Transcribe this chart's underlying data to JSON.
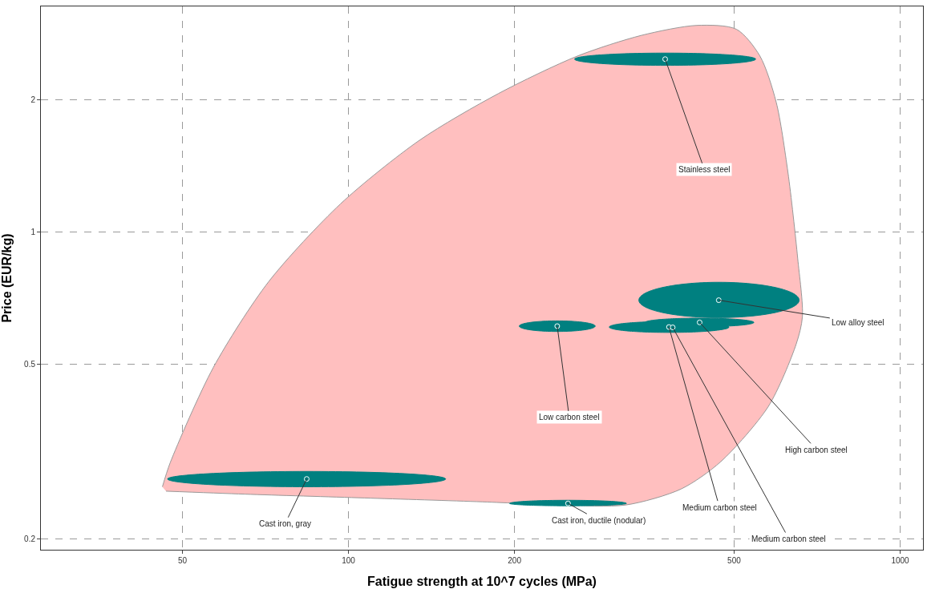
{
  "chart_data": {
    "type": "scatter",
    "xlabel": "Fatigue strength at 10^7 cycles (MPa)",
    "ylabel": "Price (EUR/kg)",
    "log": "xy",
    "grid": true,
    "series": [
      {
        "type": "area",
        "color": "#ffbfbf",
        "x": [
          46.0,
          47.5,
          56.9,
          71.7,
          96.7,
          134.5,
          187,
          260,
          340,
          428,
          505,
          557,
          596,
          626,
          652,
          665,
          648,
          577,
          473,
          401,
          318,
          244,
          175,
          107,
          64.9,
          46.7
        ],
        "values": [
          0.263,
          0.298,
          0.492,
          0.772,
          1.16,
          1.62,
          2.07,
          2.52,
          2.81,
          2.96,
          2.9,
          2.52,
          1.98,
          1.37,
          0.873,
          0.642,
          0.556,
          0.401,
          0.3,
          0.26,
          0.239,
          0.239,
          0.243,
          0.248,
          0.253,
          0.257
        ]
      },
      {
        "color": "#008080",
        "x": [
          375,
          469,
          433,
          381,
          387,
          239,
          84,
          250
        ],
        "values": [
          2.48,
          0.7,
          0.623,
          0.608,
          0.607,
          0.611,
          0.274,
          0.241
        ],
        "xerrors": [
          [
            257,
            547
          ],
          [
            336,
            656
          ],
          [
            345,
            543
          ],
          [
            297,
            489
          ],
          [
            307,
            489
          ],
          [
            204,
            280
          ],
          [
            47,
            150
          ],
          [
            196,
            319
          ]
        ],
        "errors": [
          [
            2.4,
            2.56
          ],
          [
            0.639,
            0.769
          ],
          [
            0.609,
            0.637
          ],
          [
            0.591,
            0.626
          ],
          [
            0.595,
            0.62
          ],
          [
            0.594,
            0.628
          ],
          [
            0.263,
            0.285
          ],
          [
            0.238,
            0.245
          ]
        ]
      }
    ],
    "annotations": [
      {
        "text": "Stainless steel",
        "x": 375,
        "y": 2.48
      },
      {
        "text": "Low alloy steel",
        "x": 469,
        "y": 0.7
      },
      {
        "text": "High carbon steel",
        "x": 433,
        "y": 0.623
      },
      {
        "text": "Medium carbon steel",
        "x": 381,
        "y": 0.608
      },
      {
        "text": "Medium carbon steel",
        "x": 387,
        "y": 0.607
      },
      {
        "text": "Low carbon steel",
        "x": 239,
        "y": 0.611
      },
      {
        "text": "Cast iron, gray",
        "x": 84,
        "y": 0.274
      },
      {
        "text": "Cast iron, ductile (nodular)",
        "x": 250,
        "y": 0.241
      }
    ],
    "xlim": [
      27.7,
      1100
    ],
    "ylim": [
      0.189,
      3.27
    ],
    "xticks": [
      50,
      100,
      200,
      500,
      1000
    ],
    "yticks": [
      0.2,
      0.5,
      1,
      2
    ]
  }
}
